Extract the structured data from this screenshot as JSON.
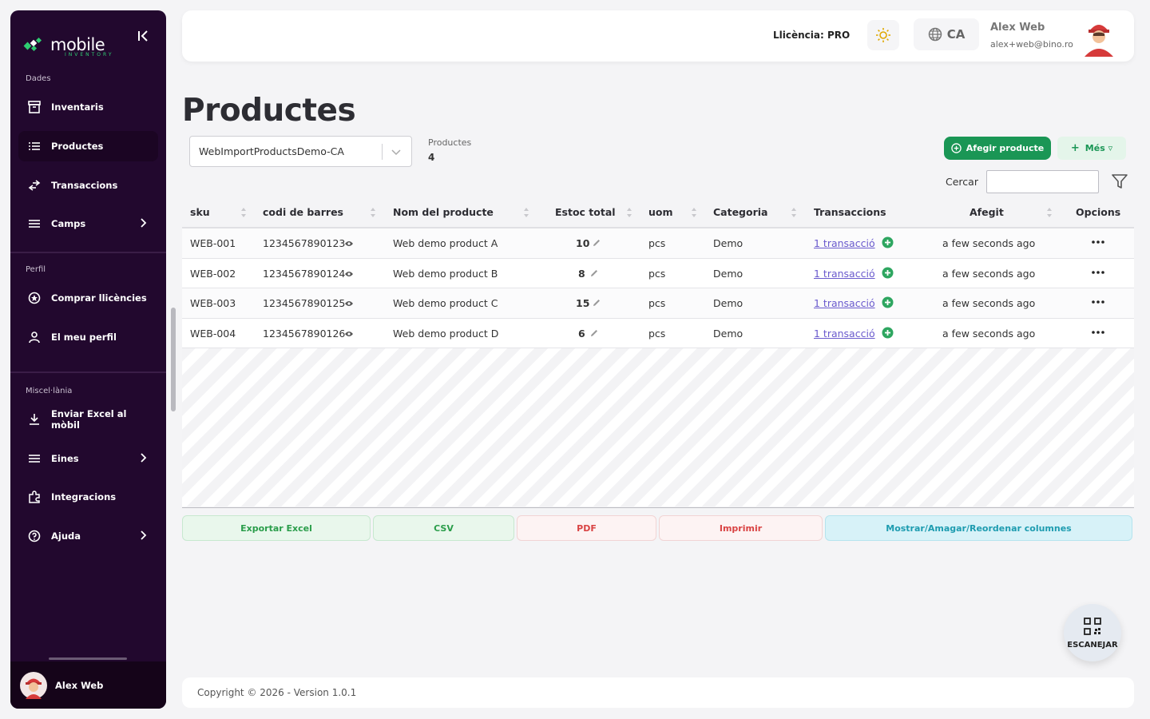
{
  "app": {
    "logo_text": "mobile",
    "logo_sub": "INVENTORY"
  },
  "sidebar": {
    "sections": [
      {
        "label": "Dades"
      },
      {
        "label": "Perfil"
      },
      {
        "label": "Miscel·lània"
      }
    ],
    "items": [
      {
        "label": "Inventaris",
        "icon": "archive-icon"
      },
      {
        "label": "Productes",
        "icon": "list-icon",
        "active": true
      },
      {
        "label": "Transaccions",
        "icon": "transfer-icon"
      },
      {
        "label": "Camps",
        "icon": "menu-icon",
        "has_chevron": true
      },
      {
        "label": "Comprar llicències",
        "icon": "badge-icon"
      },
      {
        "label": "El meu perfil",
        "icon": "user-icon"
      },
      {
        "label": "Enviar Excel al mòbil",
        "icon": "download-icon"
      },
      {
        "label": "Eines",
        "icon": "menu-icon",
        "has_chevron": true
      },
      {
        "label": "Integracions",
        "icon": "puzzle-icon"
      },
      {
        "label": "Ajuda",
        "icon": "help-icon",
        "has_chevron": true
      }
    ],
    "user_name": "Alex Web"
  },
  "topbar": {
    "license": "Llicència: PRO",
    "language": "CA",
    "user_name": "Alex Web",
    "user_email": "alex+web@bino.ro"
  },
  "main": {
    "title": "Productes",
    "list_select": "WebImportProductsDemo-CA",
    "count_label": "Productes",
    "count_value": "4",
    "add_button": "Afegir producte",
    "more_button": "Més ▿",
    "search_label": "Cercar",
    "search_value": ""
  },
  "table": {
    "columns": [
      "sku",
      "codi de barres",
      "Nom del producte",
      "Estoc total",
      "uom",
      "Categoria",
      "Transaccions",
      "Afegit",
      "Opcions"
    ],
    "rows": [
      {
        "sku": "WEB-001",
        "barcode": "1234567890123",
        "name": "Web demo product A",
        "stock": "10",
        "uom": "pcs",
        "category": "Demo",
        "transactions": "1 transacció",
        "added": "a few seconds ago"
      },
      {
        "sku": "WEB-002",
        "barcode": "1234567890124",
        "name": "Web demo product B",
        "stock": "8",
        "uom": "pcs",
        "category": "Demo",
        "transactions": "1 transacció",
        "added": "a few seconds ago"
      },
      {
        "sku": "WEB-003",
        "barcode": "1234567890125",
        "name": "Web demo product C",
        "stock": "15",
        "uom": "pcs",
        "category": "Demo",
        "transactions": "1 transacció",
        "added": "a few seconds ago"
      },
      {
        "sku": "WEB-004",
        "barcode": "1234567890126",
        "name": "Web demo product D",
        "stock": "6",
        "uom": "pcs",
        "category": "Demo",
        "transactions": "1 transacció",
        "added": "a few seconds ago"
      }
    ]
  },
  "export": {
    "excel": "Exportar Excel",
    "csv": "CSV",
    "pdf": "PDF",
    "print": "Imprimir",
    "columns": "Mostrar/Amagar/Reordenar columnes"
  },
  "scan_label": "ESCANEJAR",
  "footer": "Copyright © 2026 - Version 1.0.1",
  "colors": {
    "sidebar_bg": "#22082e",
    "accent_green": "#1a9655",
    "link_purple": "#6a5acd"
  }
}
